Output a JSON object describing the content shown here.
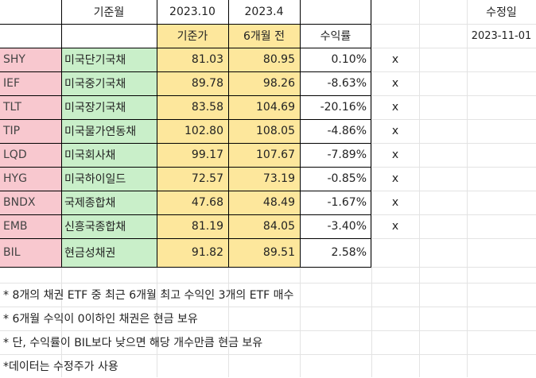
{
  "header": {
    "base_month_label": "기준월",
    "date_current": "2023.10",
    "date_prev": "2023.4",
    "modified_label": "수정일"
  },
  "subheader": {
    "base_price_label": "기준가",
    "six_month_label": "6개월 전",
    "return_label": "수익률",
    "modified_date": "2023-11-01"
  },
  "rows": [
    {
      "ticker": "SHY",
      "name": "미국단기국채",
      "current": "81.03",
      "prev": "80.95",
      "ret": "0.10%",
      "mark": "x"
    },
    {
      "ticker": "IEF",
      "name": "미국중기국채",
      "current": "89.78",
      "prev": "98.26",
      "ret": "-8.63%",
      "mark": "x"
    },
    {
      "ticker": "TLT",
      "name": "미국장기국채",
      "current": "83.58",
      "prev": "104.69",
      "ret": "-20.16%",
      "mark": "x"
    },
    {
      "ticker": "TIP",
      "name": "미국물가연동채",
      "current": "102.80",
      "prev": "108.05",
      "ret": "-4.86%",
      "mark": "x"
    },
    {
      "ticker": "LQD",
      "name": "미국회사채",
      "current": "99.17",
      "prev": "107.67",
      "ret": "-7.89%",
      "mark": "x"
    },
    {
      "ticker": "HYG",
      "name": "미국하이일드",
      "current": "72.57",
      "prev": "73.19",
      "ret": "-0.85%",
      "mark": "x"
    },
    {
      "ticker": "BNDX",
      "name": "국제종합채",
      "current": "47.68",
      "prev": "48.49",
      "ret": "-1.67%",
      "mark": "x"
    },
    {
      "ticker": "EMB",
      "name": "신흥국종합채",
      "current": "81.19",
      "prev": "84.05",
      "ret": "-3.40%",
      "mark": "x"
    },
    {
      "ticker": "BIL",
      "name": "현금성채권",
      "current": "91.82",
      "prev": "89.51",
      "ret": "2.58%",
      "mark": ""
    }
  ],
  "notes": [
    "* 8개의 채권 ETF 중 최근 6개월 최고 수익인 3개의 ETF 매수",
    "* 6개월 수익이 0이하인 채권은 현금 보유",
    "* 단, 수익률이 BIL보다 낮으면 해당 개수만큼 현금 보유",
    "*데이터는 수정주가 사용"
  ]
}
